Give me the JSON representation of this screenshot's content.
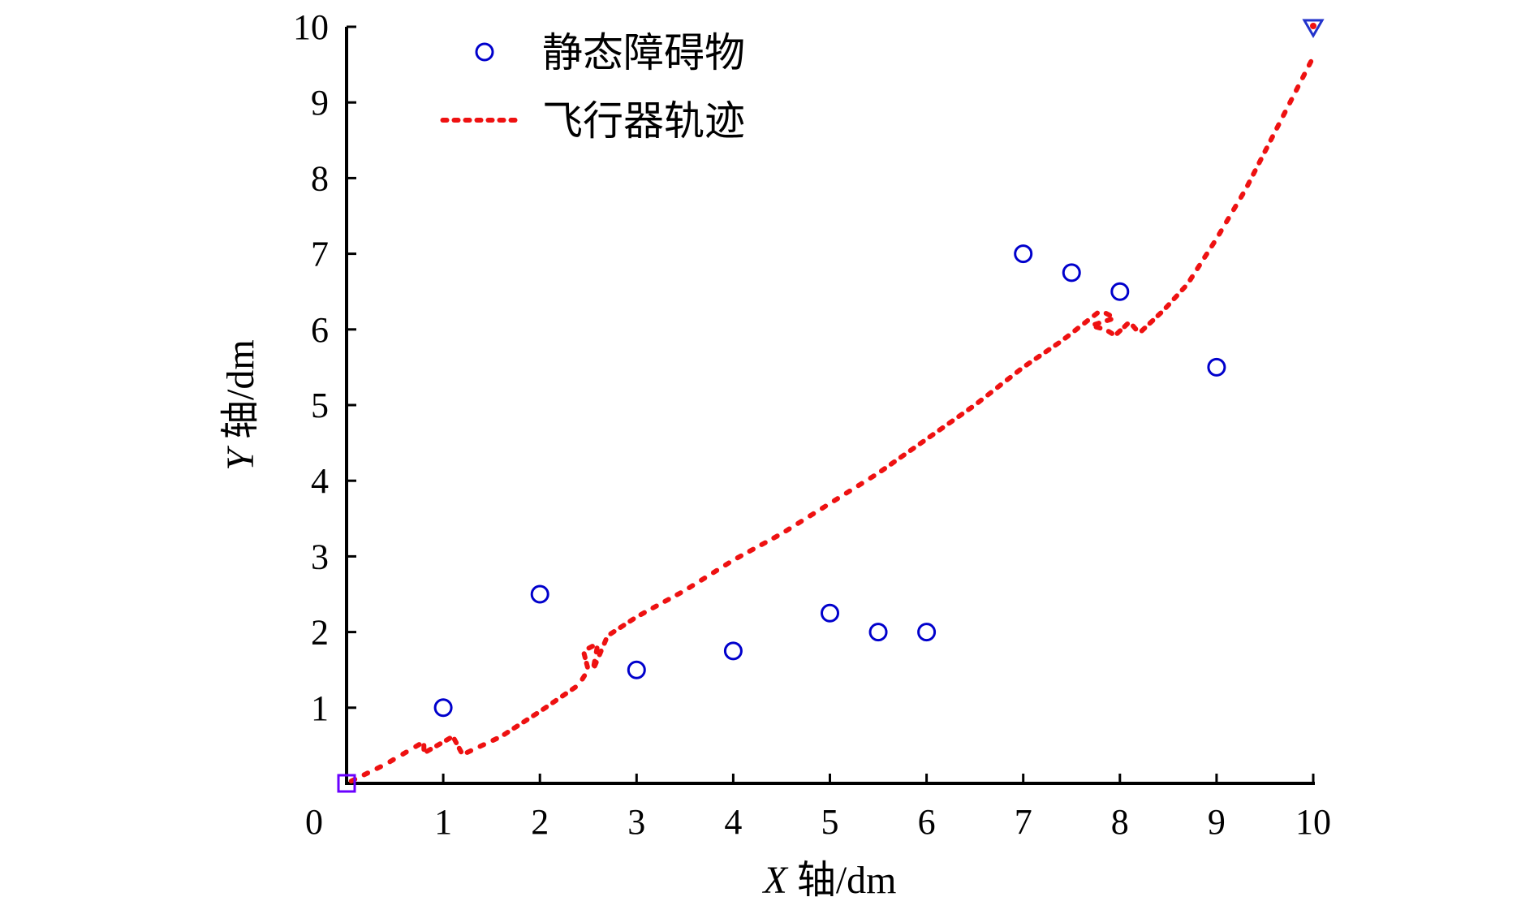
{
  "chart_data": {
    "type": "scatter",
    "xlabel_var": "X",
    "xlabel_rest": " 轴/dm",
    "ylabel_var": "Y",
    "ylabel_rest": " 轴/dm",
    "xlim": [
      0,
      10
    ],
    "ylim": [
      0,
      10
    ],
    "x_ticks": [
      0,
      1,
      2,
      3,
      4,
      5,
      6,
      7,
      8,
      9,
      10
    ],
    "x_tick_labels": [
      "0",
      "1",
      "2",
      "3",
      "4",
      "5",
      "6",
      "7",
      "8",
      "9",
      "10"
    ],
    "y_ticks": [
      1,
      2,
      3,
      4,
      5,
      6,
      7,
      8,
      9,
      10
    ],
    "y_tick_labels": [
      "1",
      "2",
      "3",
      "4",
      "5",
      "6",
      "7",
      "8",
      "9",
      "10"
    ],
    "grid": false,
    "legend_position": "top-left",
    "series": [
      {
        "name": "静态障碍物",
        "kind": "scatter",
        "marker": "circle-open",
        "color": "#0000cc",
        "points": [
          [
            1,
            1
          ],
          [
            2,
            2.5
          ],
          [
            3,
            1.5
          ],
          [
            4,
            1.75
          ],
          [
            5,
            2.25
          ],
          [
            5.5,
            2
          ],
          [
            6,
            2
          ],
          [
            7,
            7
          ],
          [
            7.5,
            6.75
          ],
          [
            8,
            6.5
          ],
          [
            9,
            5.5
          ]
        ]
      },
      {
        "name": "飞行器轨迹",
        "kind": "line",
        "style": "dotted",
        "color": "#ee1111",
        "points": [
          [
            0,
            0
          ],
          [
            0.4,
            0.25
          ],
          [
            0.8,
            0.55
          ],
          [
            0.8,
            0.4
          ],
          [
            1.1,
            0.62
          ],
          [
            1.2,
            0.38
          ],
          [
            1.6,
            0.62
          ],
          [
            2.0,
            0.95
          ],
          [
            2.4,
            1.3
          ],
          [
            2.5,
            1.5
          ],
          [
            2.45,
            1.75
          ],
          [
            2.6,
            1.85
          ],
          [
            2.55,
            1.5
          ],
          [
            2.7,
            1.95
          ],
          [
            3.0,
            2.2
          ],
          [
            3.5,
            2.55
          ],
          [
            4.0,
            2.95
          ],
          [
            4.5,
            3.3
          ],
          [
            5.0,
            3.7
          ],
          [
            5.5,
            4.1
          ],
          [
            6.0,
            4.55
          ],
          [
            6.5,
            5.0
          ],
          [
            7.0,
            5.5
          ],
          [
            7.4,
            5.85
          ],
          [
            7.6,
            6.05
          ],
          [
            7.8,
            6.25
          ],
          [
            7.95,
            6.15
          ],
          [
            7.7,
            6.05
          ],
          [
            7.85,
            6.0
          ],
          [
            7.95,
            5.92
          ],
          [
            8.1,
            6.1
          ],
          [
            8.2,
            5.95
          ],
          [
            8.45,
            6.25
          ],
          [
            8.7,
            6.6
          ],
          [
            9.0,
            7.2
          ],
          [
            9.3,
            7.85
          ],
          [
            9.6,
            8.6
          ],
          [
            9.8,
            9.1
          ],
          [
            10.0,
            9.6
          ]
        ]
      },
      {
        "name": "",
        "kind": "marker",
        "marker": "square-open",
        "color": "#6a00ff",
        "points": [
          [
            0,
            0
          ]
        ]
      },
      {
        "name": "",
        "kind": "marker",
        "marker": "triangle-down-open",
        "color": "#2233cc",
        "fill_color": "#ee1111",
        "points": [
          [
            10,
            10
          ]
        ]
      }
    ]
  }
}
